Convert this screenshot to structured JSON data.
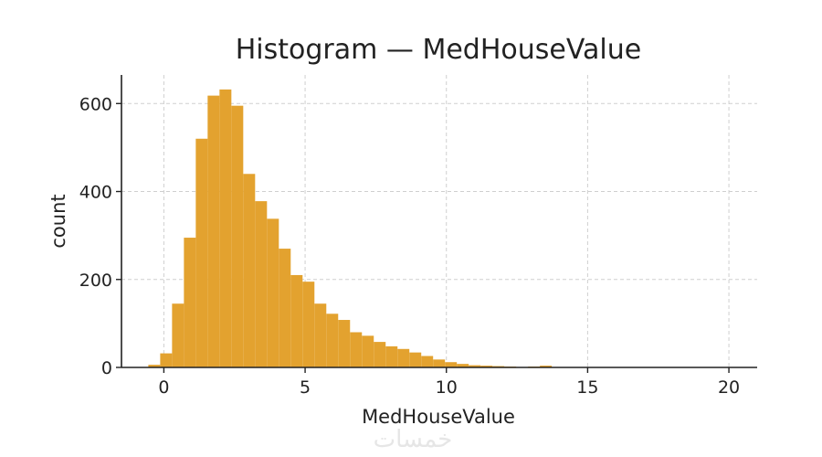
{
  "chart_data": {
    "type": "bar",
    "title": "Histogram — MedHouseValue",
    "xlabel": "MedHouseValue",
    "ylabel": "count",
    "xlim": [
      -1.5,
      21
    ],
    "ylim": [
      0,
      665
    ],
    "xticks": [
      0,
      5,
      10,
      15,
      20
    ],
    "yticks": [
      0,
      200,
      400,
      600
    ],
    "grid": true,
    "bar_color": "#E3A22F",
    "bin_width": 0.42,
    "bin_start": -0.55,
    "values": [
      6,
      32,
      145,
      295,
      520,
      618,
      632,
      595,
      440,
      378,
      338,
      270,
      210,
      195,
      145,
      122,
      108,
      80,
      72,
      58,
      48,
      42,
      34,
      26,
      18,
      12,
      8,
      5,
      4,
      3,
      2,
      1,
      2,
      4,
      1,
      1,
      1,
      0,
      0,
      0,
      0,
      0,
      0,
      0,
      0,
      0,
      0,
      0,
      0,
      0,
      0,
      0,
      0,
      0,
      0,
      0,
      0,
      0,
      0,
      0,
      0,
      0,
      0,
      0
    ]
  },
  "watermark": {
    "text": "خمسات"
  }
}
